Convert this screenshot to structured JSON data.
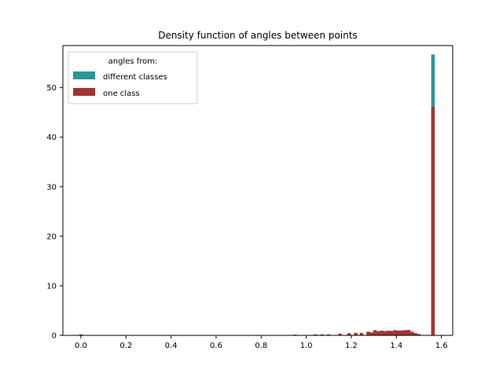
{
  "chart_data": {
    "type": "bar",
    "title": "Density function of angles between points",
    "xlabel": "",
    "ylabel": "",
    "xlim": [
      -0.08,
      1.65
    ],
    "ylim": [
      0,
      58.5
    ],
    "xticks": [
      0.0,
      0.2,
      0.4,
      0.6,
      0.8,
      1.0,
      1.2,
      1.4,
      1.6
    ],
    "xtick_labels": [
      "0.0",
      "0.2",
      "0.4",
      "0.6",
      "0.8",
      "1.0",
      "1.2",
      "1.4",
      "1.6"
    ],
    "yticks": [
      0,
      10,
      20,
      30,
      40,
      50
    ],
    "ytick_labels": [
      "0",
      "10",
      "20",
      "30",
      "40",
      "50"
    ],
    "grid": false,
    "legend": {
      "title": "angles from:",
      "placement": "upper-left"
    },
    "bin_width": 0.0157,
    "series": [
      {
        "name": "different classes",
        "color": "#2a9797",
        "bins": [
          {
            "x": 1.5625,
            "y": 56.7
          }
        ]
      },
      {
        "name": "one class",
        "color": "#a33431",
        "bins": [
          {
            "x": 0.0,
            "y": 0.2
          },
          {
            "x": 0.95,
            "y": 0.15
          },
          {
            "x": 1.04,
            "y": 0.2
          },
          {
            "x": 1.07,
            "y": 0.2
          },
          {
            "x": 1.1,
            "y": 0.2
          },
          {
            "x": 1.15,
            "y": 0.35
          },
          {
            "x": 1.19,
            "y": 0.45
          },
          {
            "x": 1.22,
            "y": 0.5
          },
          {
            "x": 1.245,
            "y": 0.5
          },
          {
            "x": 1.275,
            "y": 0.75
          },
          {
            "x": 1.29,
            "y": 0.6
          },
          {
            "x": 1.305,
            "y": 1.05
          },
          {
            "x": 1.32,
            "y": 0.85
          },
          {
            "x": 1.335,
            "y": 0.95
          },
          {
            "x": 1.35,
            "y": 0.85
          },
          {
            "x": 1.365,
            "y": 0.95
          },
          {
            "x": 1.38,
            "y": 0.9
          },
          {
            "x": 1.395,
            "y": 1.05
          },
          {
            "x": 1.41,
            "y": 0.95
          },
          {
            "x": 1.425,
            "y": 1.0
          },
          {
            "x": 1.44,
            "y": 1.05
          },
          {
            "x": 1.455,
            "y": 1.1
          },
          {
            "x": 1.47,
            "y": 0.75
          },
          {
            "x": 1.485,
            "y": 0.45
          },
          {
            "x": 1.5,
            "y": 0.25
          },
          {
            "x": 1.5625,
            "y": 46.1
          }
        ]
      }
    ]
  }
}
